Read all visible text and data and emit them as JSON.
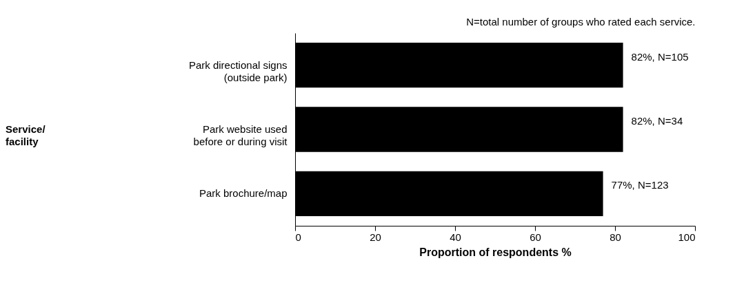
{
  "chart_data": {
    "type": "bar",
    "orientation": "horizontal",
    "title": "N=total number of groups who rated each service.",
    "categories": [
      "Park directional signs\n(outside park)",
      "Park website used\nbefore or during visit",
      "Park brochure/map"
    ],
    "values": [
      82,
      82,
      77
    ],
    "color": "#000000",
    "value_labels": [
      "82%, N=105",
      "82%, N=34",
      "77%, N=123"
    ],
    "xlabel": "Proportion of respondents %",
    "annotations": [
      "Service/\nfacility"
    ],
    "xlim": [
      0,
      100
    ],
    "xticks": [
      0,
      20,
      40,
      60,
      80,
      100
    ],
    "grid": false
  }
}
